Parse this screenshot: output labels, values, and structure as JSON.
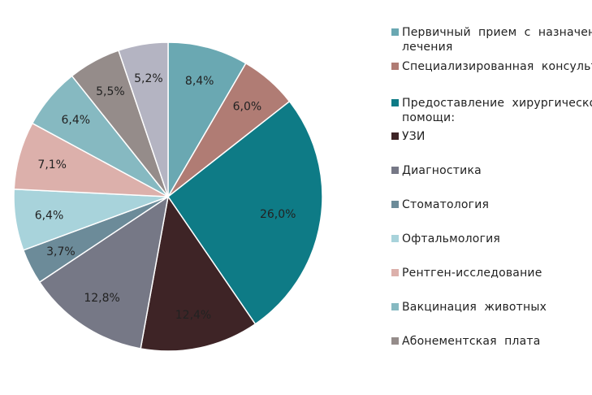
{
  "chart_data": {
    "type": "pie",
    "start_angle_deg": 0,
    "direction": "clockwise",
    "legend_position": "right",
    "slices": [
      {
        "label": "Первичный  прием  с  назначением\nлечения",
        "value": 8.4,
        "value_label": "8,4%",
        "color": "#6aa8b2"
      },
      {
        "label": "Специализированная  консультация",
        "value": 6.0,
        "value_label": "6,0%",
        "color": "#b07c74"
      },
      {
        "label": "Предоставление  хирургической\nпомощи:",
        "value": 26.0,
        "value_label": "26,0%",
        "color": "#0e7b86"
      },
      {
        "label": "УЗИ",
        "value": 12.4,
        "value_label": "12,4%",
        "color": "#3e2426"
      },
      {
        "label": "Диагностика",
        "value": 12.8,
        "value_label": "12,8%",
        "color": "#767886"
      },
      {
        "label": "Стоматология",
        "value": 3.7,
        "value_label": "3,7%",
        "color": "#6c8b99"
      },
      {
        "label": "Офтальмология",
        "value": 6.4,
        "value_label": "6,4%",
        "color": "#a8d3db"
      },
      {
        "label": "Рентген-исследование",
        "value": 7.1,
        "value_label": "7,1%",
        "color": "#dcb0ab"
      },
      {
        "label": "Вакцинация  животных",
        "value": 6.4,
        "value_label": "6,4%",
        "color": "#86b9c1"
      },
      {
        "label": "Абонементская  плата",
        "value": 5.5,
        "value_label": "5,5%",
        "color": "#958c8a"
      },
      {
        "label": "",
        "value": 5.2,
        "value_label": "5,2%",
        "color": "#b4b4c2"
      }
    ]
  }
}
